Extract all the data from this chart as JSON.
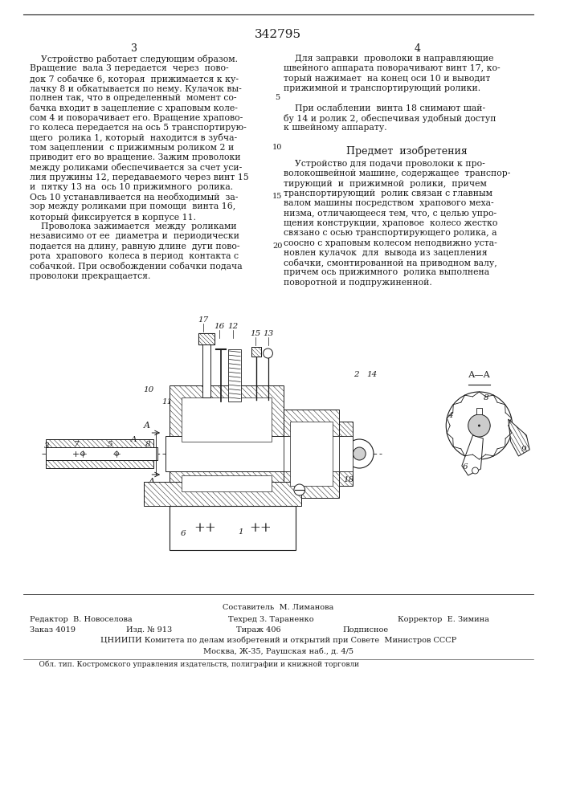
{
  "title": "342795",
  "bg_color": "#ffffff",
  "text_color": "#1a1a1a",
  "col_left_text": [
    "    Устройство работает следующим образом.",
    "Вращение  вала 3 передается  через  пово-",
    "док 7 собачке 6, которая  прижимается к ку-",
    "лачку 8 и обкатывается по нему. Кулачок вы-",
    "полнен так, что в определенный  момент со-",
    "бачка входит в зацепление с храповым коле-",
    "сом 4 и поворачивает его. Вращение храпово-",
    "го колеса передается на ось 5 транспортирую-",
    "щего  ролика 1, который  находится в зубча-",
    "том зацеплении  с прижимным роликом 2 и",
    "приводит его во вращение. Зажим проволоки",
    "между роликами обеспечивается за счет уси-",
    "лия пружины 12, передаваемого через винт 15",
    "и  пятку 13 на  ось 10 прижимного  ролика.",
    "Ось 10 устанавливается на необходимый  за-",
    "зор между роликами при помощи  винта 16,",
    "который фиксируется в корпусе 11.",
    "    Проволока зажимается  между  роликами",
    "независимо от ее  диаметра и  периодически",
    "подается на длину, равную длине  дуги пово-",
    "рота  храпового  колеса в период  контакта с",
    "собачкой. При освобождении собачки подача",
    "проволоки прекращается."
  ],
  "col_right_text_top": [
    "    Для заправки  проволоки в направляющие",
    "швейного аппарата поворачивают винт 17, ко-",
    "торый нажимает  на конец оси 10 и выводит",
    "прижимной и транспортирующий ролики."
  ],
  "col_right_text_mid": [
    "    При ослаблении  винта 18 снимают шай-",
    "бу 14 и ролик 2, обеспечивая удобный доступ",
    "к швейному аппарату."
  ],
  "subject_title": "Предмет  изобретения",
  "col_right_text_subject": [
    "    Устройство для подачи проволоки к про-",
    "волокошвейной машине, содержащее  транспор-",
    "тирующий  и  прижимной  ролики,  причем",
    "транспортирующий  ролик связан с главным",
    "валом машины посредством  храпового меха-",
    "низма, отличающееся тем, что, с целью упро-",
    "щения конструкции, храповое  колесо жестко",
    "связано с осью транспортирующего ролика, а",
    "соосно с храповым колесом неподвижно уста-",
    "новлен кулачок  для  вывода из зацепления",
    "собачки, смонтированной на приводном валу,",
    "причем ось прижимного  ролика выполнена",
    "поворотной и подпружиненной."
  ],
  "footer_composer": "Составитель  М. Лиманова",
  "footer_editor": "Редактор  В. Новоселова",
  "footer_tech": "Техред 3. Тараненко",
  "footer_corrector": "Корректор  Е. Зимина",
  "footer_order": "Заказ 4019",
  "footer_izd": "Изд. № 913",
  "footer_tirazh": "Тираж 406",
  "footer_podp": "Подписное",
  "footer_tsniipi": "ЦНИИПИ Комитета по делам изобретений и открытий при Совете  Министров СССР",
  "footer_moscow": "Москва, Ж-35, Раушская наб., д. 4/5",
  "footer_obl": "    Обл. тип. Костромского управления издательств, полиграфии и книжной торговли"
}
